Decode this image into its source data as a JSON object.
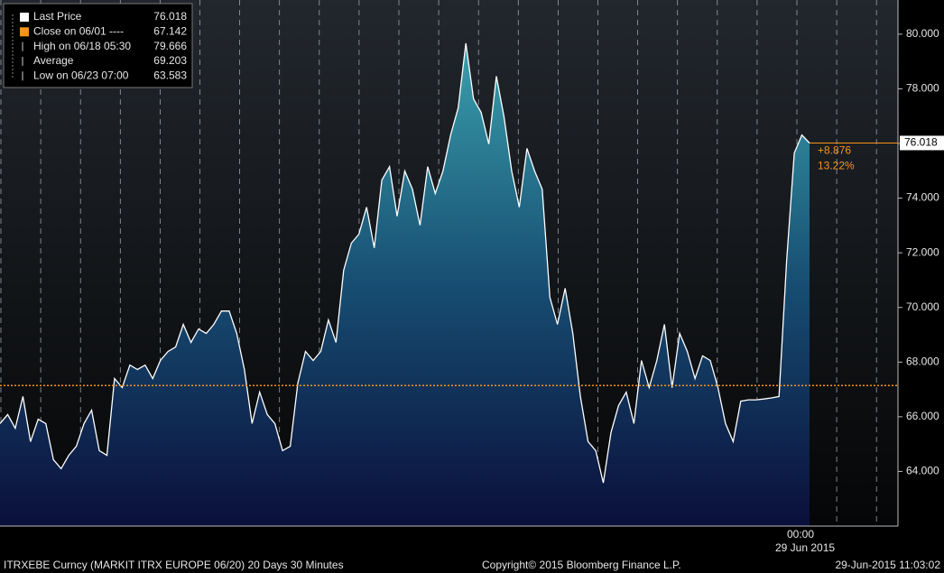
{
  "chart_data": {
    "type": "area",
    "series": [
      {
        "name": "Last Price",
        "color": "#ffffff",
        "values": [
          65.75,
          66.08,
          65.58,
          66.74,
          65.09,
          65.91,
          65.75,
          64.43,
          64.1,
          64.59,
          64.92,
          65.75,
          66.24,
          64.76,
          64.59,
          67.4,
          67.07,
          67.89,
          67.73,
          67.89,
          67.4,
          68.06,
          68.39,
          68.55,
          69.38,
          68.72,
          69.21,
          69.05,
          69.38,
          69.87,
          69.87,
          69.05,
          67.73,
          65.75,
          66.9,
          66.08,
          65.75,
          64.76,
          64.92,
          67.23,
          68.39,
          68.06,
          68.39,
          69.54,
          68.72,
          71.36,
          72.35,
          72.68,
          73.67,
          72.18,
          74.66,
          75.15,
          73.34,
          74.99,
          74.33,
          73.01,
          75.15,
          74.17,
          74.99,
          76.31,
          77.3,
          79.666,
          77.63,
          77.14,
          75.98,
          78.46,
          76.97,
          74.99,
          73.67,
          75.82,
          74.99,
          74.33,
          70.37,
          69.38,
          70.7,
          69.05,
          66.74,
          65.09,
          64.76,
          63.583,
          65.42,
          66.41,
          66.9,
          65.75,
          68.06,
          67.07,
          68.06,
          69.38,
          67.07,
          69.05,
          68.39,
          67.4,
          68.23,
          68.06,
          67.07,
          65.75,
          65.09,
          66.57,
          66.62,
          66.62,
          66.65,
          66.69,
          66.74,
          71.69,
          75.65,
          76.31,
          76.018
        ]
      }
    ],
    "ylim": [
      62,
      81.25
    ],
    "yticks": [
      {
        "value": 64,
        "label": "64.000"
      },
      {
        "value": 66,
        "label": "66.000"
      },
      {
        "value": 68,
        "label": "68.000"
      },
      {
        "value": 70,
        "label": "70.000"
      },
      {
        "value": 72,
        "label": "72.000"
      },
      {
        "value": 74,
        "label": "74.000"
      },
      {
        "value": 76,
        "label": "76.000"
      },
      {
        "value": 78,
        "label": "78.000"
      },
      {
        "value": 80,
        "label": "80.000"
      }
    ],
    "legend": [
      {
        "label": "Last Price",
        "value": 76.018
      },
      {
        "label": "Close on 06/01 ----",
        "value": 67.142,
        "color": "#f7941d"
      },
      {
        "label": "High on 06/18 05:30",
        "value": 79.666
      },
      {
        "label": "Average",
        "value": 69.203
      },
      {
        "label": "Low on 06/23 07:00",
        "value": 63.583
      }
    ],
    "change_label": "+8.876",
    "change_pct": "13.22%",
    "x_labels": [
      "00:00",
      "29 Jun 2015"
    ]
  },
  "footer": {
    "left": "ITRXEBE Curncy (MARKIT ITRX EUROPE 06/20) 20 Days 30 Minutes",
    "center": "Copyright© 2015 Bloomberg Finance L.P.",
    "right": "29-Jun-2015 11:03:02"
  }
}
